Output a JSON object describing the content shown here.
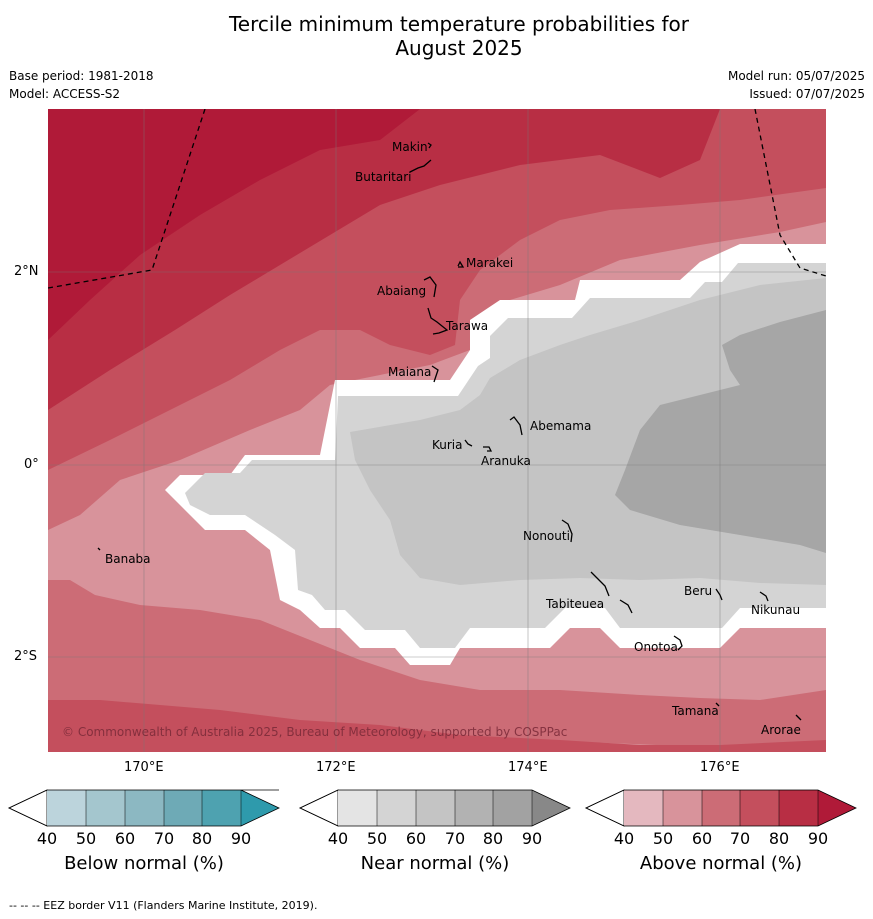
{
  "title_line1": "Tercile minimum temperature probabilities for",
  "title_line2": "August 2025",
  "meta": {
    "base_period": "Base period: 1981-2018",
    "model": "Model: ACCESS-S2",
    "model_run": "Model run: 05/07/2025",
    "issued": "Issued: 07/07/2025"
  },
  "axes": {
    "lon_ticks": [
      "170°E",
      "172°E",
      "174°E",
      "176°E"
    ],
    "lat_ticks": [
      "2°N",
      "0°",
      "2°S"
    ]
  },
  "places": [
    {
      "name": "Makin",
      "lon": 172.9,
      "lat": 3.3
    },
    {
      "name": "Butaritari",
      "lon": 172.7,
      "lat": 3.05
    },
    {
      "name": "Marakei",
      "lon": 173.3,
      "lat": 2.0
    },
    {
      "name": "Abaiang",
      "lon": 172.9,
      "lat": 1.8
    },
    {
      "name": "Tarawa",
      "lon": 173.0,
      "lat": 1.4
    },
    {
      "name": "Maiana",
      "lon": 173.0,
      "lat": 0.95
    },
    {
      "name": "Abemama",
      "lon": 173.85,
      "lat": 0.4
    },
    {
      "name": "Kuria",
      "lon": 173.4,
      "lat": 0.23
    },
    {
      "name": "Aranuka",
      "lon": 173.6,
      "lat": 0.16
    },
    {
      "name": "Nonouti",
      "lon": 174.4,
      "lat": -0.65
    },
    {
      "name": "Banaba",
      "lon": 169.53,
      "lat": -0.86
    },
    {
      "name": "Tabiteuea",
      "lon": 174.8,
      "lat": -1.35
    },
    {
      "name": "Beru",
      "lon": 176.0,
      "lat": -1.33
    },
    {
      "name": "Nikunau",
      "lon": 176.45,
      "lat": -1.35
    },
    {
      "name": "Onotoa",
      "lon": 175.55,
      "lat": -1.8
    },
    {
      "name": "Tamana",
      "lon": 175.98,
      "lat": -2.5
    },
    {
      "name": "Arorae",
      "lon": 176.82,
      "lat": -2.64
    }
  ],
  "copyright": "© Commonwealth of Australia 2025, Bureau of Meteorology, supported by COSPPac",
  "colorbars": [
    {
      "label": "Below normal (%)",
      "ticks": [
        "40",
        "50",
        "60",
        "70",
        "80",
        "90"
      ],
      "colors": [
        "#bcd4dc",
        "#a4c6ce",
        "#8cb8c2",
        "#6eaab6",
        "#4ea2b0",
        "#2e9aac"
      ]
    },
    {
      "label": "Near normal (%)",
      "ticks": [
        "40",
        "50",
        "60",
        "70",
        "80",
        "90"
      ],
      "colors": [
        "#e4e4e4",
        "#d4d4d4",
        "#c4c4c4",
        "#b2b2b2",
        "#a2a2a2",
        "#888888"
      ]
    },
    {
      "label": "Above normal (%)",
      "ticks": [
        "40",
        "50",
        "60",
        "70",
        "80",
        "90"
      ],
      "colors": [
        "#e4b8bf",
        "#d8939b",
        "#cc6c76",
        "#c44f5d",
        "#b82e44",
        "#b01a38"
      ]
    }
  ],
  "footer": "--  --  -- EEZ border V11 (Flanders Marine Institute, 2019).",
  "colors": {
    "above_90": "#b01a38",
    "above_80": "#b82e44",
    "above_70": "#c44f5d",
    "above_60": "#cc6c76",
    "above_50": "#d8939b",
    "above_40": "#e4b8bf",
    "near_50": "#d4d4d4",
    "near_60": "#c4c4c4",
    "near_70": "#a6a6a6"
  }
}
